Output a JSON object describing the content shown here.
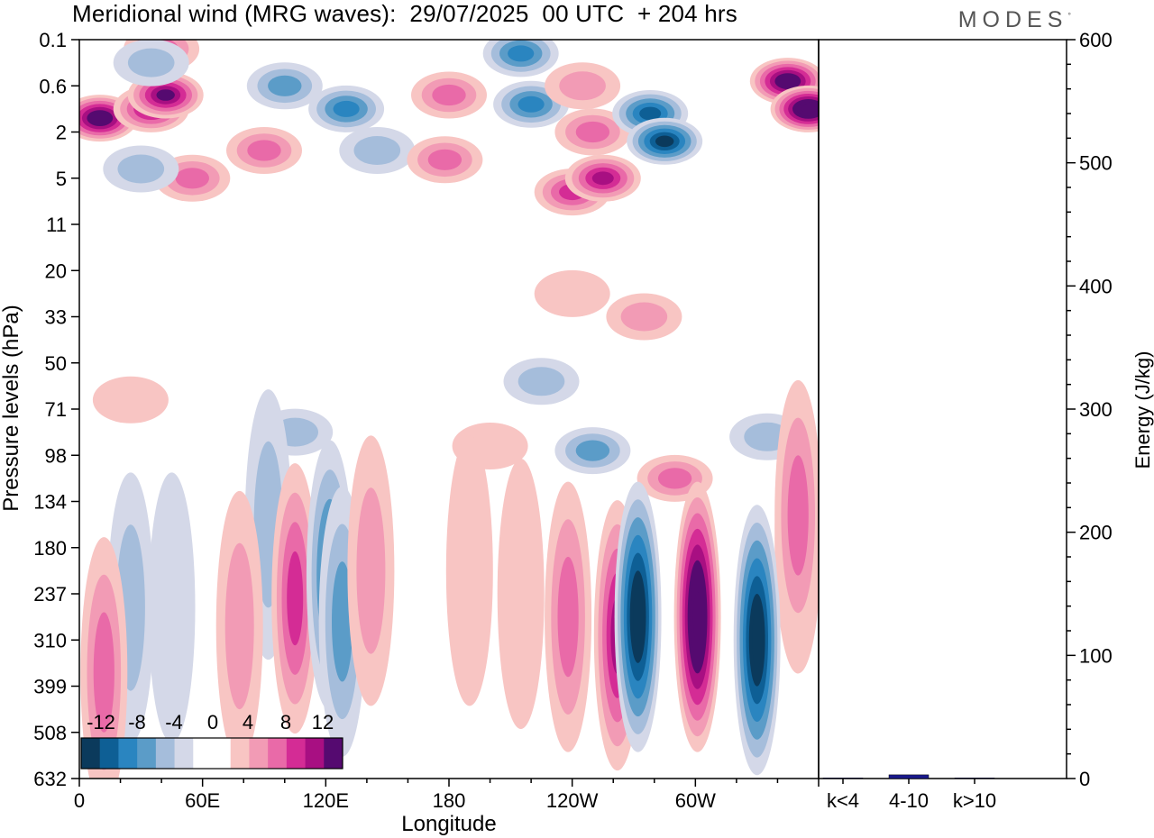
{
  "header": {
    "title": "Meridional wind (MRG waves):  29/07/2025  00 UTC  + 204 hrs",
    "logo": "MODES",
    "logo_mark": "°"
  },
  "colors": {
    "neg": [
      "#0b3a5c",
      "#0e5f95",
      "#2a85c0",
      "#5b9cc8",
      "#a5bddb",
      "#d4d8e8"
    ],
    "zero": "#ffffff",
    "pos": [
      "#f8c5c3",
      "#f29bb5",
      "#e96aa8",
      "#d42c95",
      "#a80f82",
      "#550a70"
    ],
    "bar": "#1a1a8c"
  },
  "chart_data": [
    {
      "type": "heatmap",
      "title": "Meridional wind (MRG waves):  29/07/2025  00 UTC  + 204 hrs",
      "xlabel": "Longitude",
      "ylabel": "Pressure levels (hPa)",
      "x_ticks": [
        "0",
        "60E",
        "120E",
        "180",
        "120W",
        "60W"
      ],
      "y_ticks": [
        "0.1",
        "0.6",
        "2",
        "5",
        "11",
        "20",
        "33",
        "50",
        "71",
        "98",
        "134",
        "180",
        "237",
        "310",
        "399",
        "508",
        "632"
      ],
      "colorbar": {
        "labels": [
          "-12",
          "-8",
          "-4",
          "0",
          "4",
          "8",
          "12"
        ],
        "levels": [
          -14,
          -12,
          -10,
          -8,
          -6,
          -4,
          -2,
          2,
          4,
          6,
          8,
          10,
          12,
          14
        ]
      },
      "features": [
        {
          "lon": 10,
          "level": 1.7,
          "value": 13
        },
        {
          "lon": 35,
          "level": 1.5,
          "value": 9
        },
        {
          "lon": 42,
          "level": 1.2,
          "value": 11
        },
        {
          "lon": 40,
          "level": 0.2,
          "value": 6
        },
        {
          "lon": 55,
          "level": 3.0,
          "value": 5
        },
        {
          "lon": 90,
          "level": 2.4,
          "value": 6
        },
        {
          "lon": 30,
          "level": 2.8,
          "value": -3
        },
        {
          "lon": 35,
          "level": 0.5,
          "value": -3
        },
        {
          "lon": 100,
          "level": 1.0,
          "value": -5
        },
        {
          "lon": 130,
          "level": 1.5,
          "value": -7
        },
        {
          "lon": 145,
          "level": 2.4,
          "value": -4
        },
        {
          "lon": 180,
          "level": 1.2,
          "value": 5
        },
        {
          "lon": 178,
          "level": 2.6,
          "value": 6
        },
        {
          "lon": 215,
          "level": 0.3,
          "value": -7
        },
        {
          "lon": 220,
          "level": 1.4,
          "value": -7
        },
        {
          "lon": 245,
          "level": 1.0,
          "value": 4
        },
        {
          "lon": 250,
          "level": 2.0,
          "value": 5
        },
        {
          "lon": 240,
          "level": 3.3,
          "value": 7
        },
        {
          "lon": 255,
          "level": 3.0,
          "value": 9
        },
        {
          "lon": 278,
          "level": 1.6,
          "value": -9
        },
        {
          "lon": 285,
          "level": 2.2,
          "value": -12
        },
        {
          "lon": 345,
          "level": 0.9,
          "value": 13
        },
        {
          "lon": 355,
          "level": 1.5,
          "value": 15
        },
        {
          "lon": 275,
          "level": 6.0,
          "value": 3
        },
        {
          "lon": 240,
          "level": 5.5,
          "value": 2
        },
        {
          "lon": 25,
          "level": 7.8,
          "value": 2
        },
        {
          "lon": 105,
          "level": 8.5,
          "value": -3
        },
        {
          "lon": 200,
          "level": 8.8,
          "value": 2
        },
        {
          "lon": 225,
          "level": 7.4,
          "value": -3
        },
        {
          "lon": 250,
          "level": 8.9,
          "value": -5
        },
        {
          "lon": 290,
          "level": 9.5,
          "value": 6
        },
        {
          "lon": 335,
          "level": 8.6,
          "value": -3
        },
        {
          "lon": 350,
          "level": 10.8,
          "value": 5
        },
        {
          "lon": 92,
          "level": 10.5,
          "value": -4
        },
        {
          "lon": 105,
          "level": 12.1,
          "value": 8
        },
        {
          "lon": 122,
          "level": 11.6,
          "value": -8
        },
        {
          "lon": 128,
          "level": 12.6,
          "value": -5
        },
        {
          "lon": 78,
          "level": 12.7,
          "value": 4
        },
        {
          "lon": 142,
          "level": 11.5,
          "value": 3
        },
        {
          "lon": 25,
          "level": 12.3,
          "value": -4
        },
        {
          "lon": 45,
          "level": 12.3,
          "value": -2
        },
        {
          "lon": 12,
          "level": 13.7,
          "value": 5
        },
        {
          "lon": 190,
          "level": 11.5,
          "value": 2
        },
        {
          "lon": 215,
          "level": 12.0,
          "value": 2
        },
        {
          "lon": 238,
          "level": 12.5,
          "value": 6
        },
        {
          "lon": 262,
          "level": 12.9,
          "value": 10
        },
        {
          "lon": 272,
          "level": 12.5,
          "value": -14
        },
        {
          "lon": 301,
          "level": 12.5,
          "value": 15
        },
        {
          "lon": 330,
          "level": 13.0,
          "value": -13
        },
        {
          "lon": 350,
          "level": 10.3,
          "value": 6
        }
      ]
    },
    {
      "type": "bar",
      "categories": [
        "k<4",
        "4-10",
        "k>10"
      ],
      "values": [
        0.5,
        3,
        0.5
      ],
      "ylabel": "Energy (J/kg)",
      "y_ticks": [
        "0",
        "100",
        "200",
        "300",
        "400",
        "500",
        "600"
      ],
      "ylim": [
        0,
        600
      ]
    }
  ]
}
